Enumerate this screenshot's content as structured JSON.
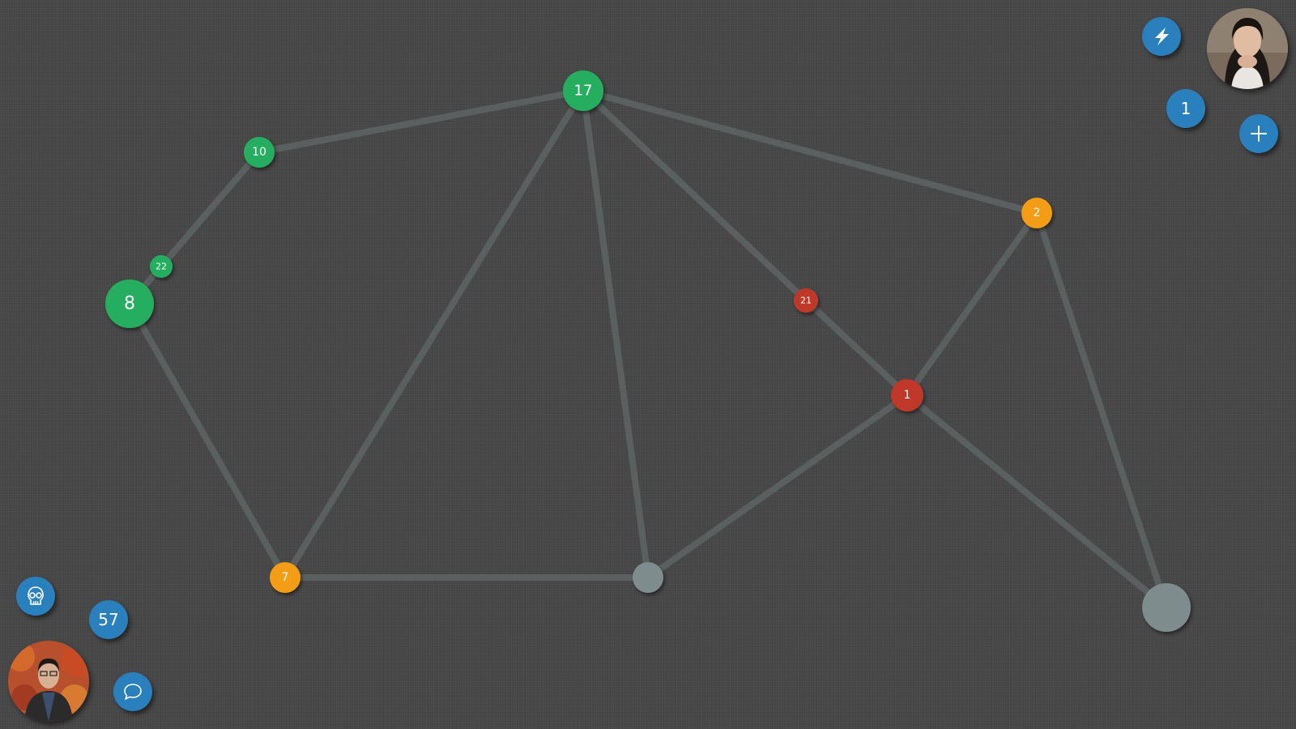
{
  "colors": {
    "background": "#464646",
    "edge": "#5a605f",
    "green": "#27ae60",
    "orange": "#f39c12",
    "red": "#c0392b",
    "neutral": "#7f8c8d",
    "button": "#2a7fbd"
  },
  "graph": {
    "nodes": [
      {
        "id": "n17",
        "label": "17",
        "owner": "green"
      },
      {
        "id": "n10",
        "label": "10",
        "owner": "green"
      },
      {
        "id": "n22",
        "label": "22",
        "owner": "green"
      },
      {
        "id": "n8",
        "label": "8",
        "owner": "green"
      },
      {
        "id": "n7",
        "label": "7",
        "owner": "orange"
      },
      {
        "id": "nb",
        "label": "",
        "owner": "neutral"
      },
      {
        "id": "n21",
        "label": "21",
        "owner": "red"
      },
      {
        "id": "n1",
        "label": "1",
        "owner": "red"
      },
      {
        "id": "n2",
        "label": "2",
        "owner": "orange"
      },
      {
        "id": "nbr",
        "label": "",
        "owner": "neutral"
      }
    ],
    "edges": [
      [
        "n10",
        "n17"
      ],
      [
        "n17",
        "n2"
      ],
      [
        "n22",
        "n10"
      ],
      [
        "n8",
        "n22"
      ],
      [
        "n8",
        "n7"
      ],
      [
        "n7",
        "n17"
      ],
      [
        "n17",
        "nb"
      ],
      [
        "n17",
        "n21"
      ],
      [
        "n21",
        "n1"
      ],
      [
        "n1",
        "n2"
      ],
      [
        "n7",
        "nb"
      ],
      [
        "nb",
        "n1"
      ],
      [
        "n1",
        "nbr"
      ],
      [
        "n2",
        "nbr"
      ]
    ]
  },
  "hud": {
    "opponent": {
      "avatar_icon": "opponent-avatar-photo",
      "count": "1",
      "power_icon": "lightning-icon",
      "add_icon": "plus-icon"
    },
    "player": {
      "avatar_icon": "player-avatar-photo",
      "count": "57",
      "skull_icon": "skull-icon",
      "chat_icon": "chat-bubble-icon"
    }
  }
}
